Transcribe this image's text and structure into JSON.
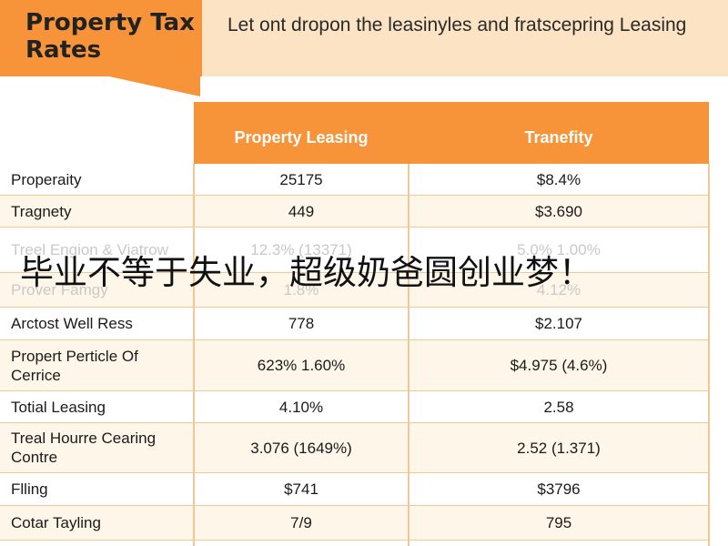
{
  "header": {
    "title": "Property Tax Rates",
    "subtitle": "Let ont dropon the leasinyles and fratscepring Leasing"
  },
  "table": {
    "columns": [
      "Property Leasing",
      "Tranefity"
    ],
    "rows": [
      {
        "label": "Properaity",
        "v1": "25175",
        "v2": "$8.4%"
      },
      {
        "label": "Tragnety",
        "v1": "449",
        "v2": "$3.690"
      },
      {
        "label": "Treel Engion & Viatrow",
        "v1": "12.3% (13371)",
        "v2": "5.0% 1.00%"
      },
      {
        "label": "Prover Famgy",
        "v1": "1.8%",
        "v2": "4.12%"
      },
      {
        "label": "Arctost Well Ress",
        "v1": "778",
        "v2": "$2.107"
      },
      {
        "label": "Propert Perticle Of Cerrice",
        "v1": "623% 1.60%",
        "v2": "$4.975 (4.6%)"
      },
      {
        "label": "Totial Leasing",
        "v1": "4.10%",
        "v2": "2.58"
      },
      {
        "label": "Treal Hourre Cearing Contre",
        "v1": "3.076 (1649%)",
        "v2": "2.52 (1.371)"
      },
      {
        "label": "Flling",
        "v1": "$741",
        "v2": "$3796"
      },
      {
        "label": "Cotar Tayling",
        "v1": "7/9",
        "v2": "795"
      }
    ]
  },
  "overlay": {
    "text": "毕业不等于失业，超级奶爸圆创业梦！"
  }
}
